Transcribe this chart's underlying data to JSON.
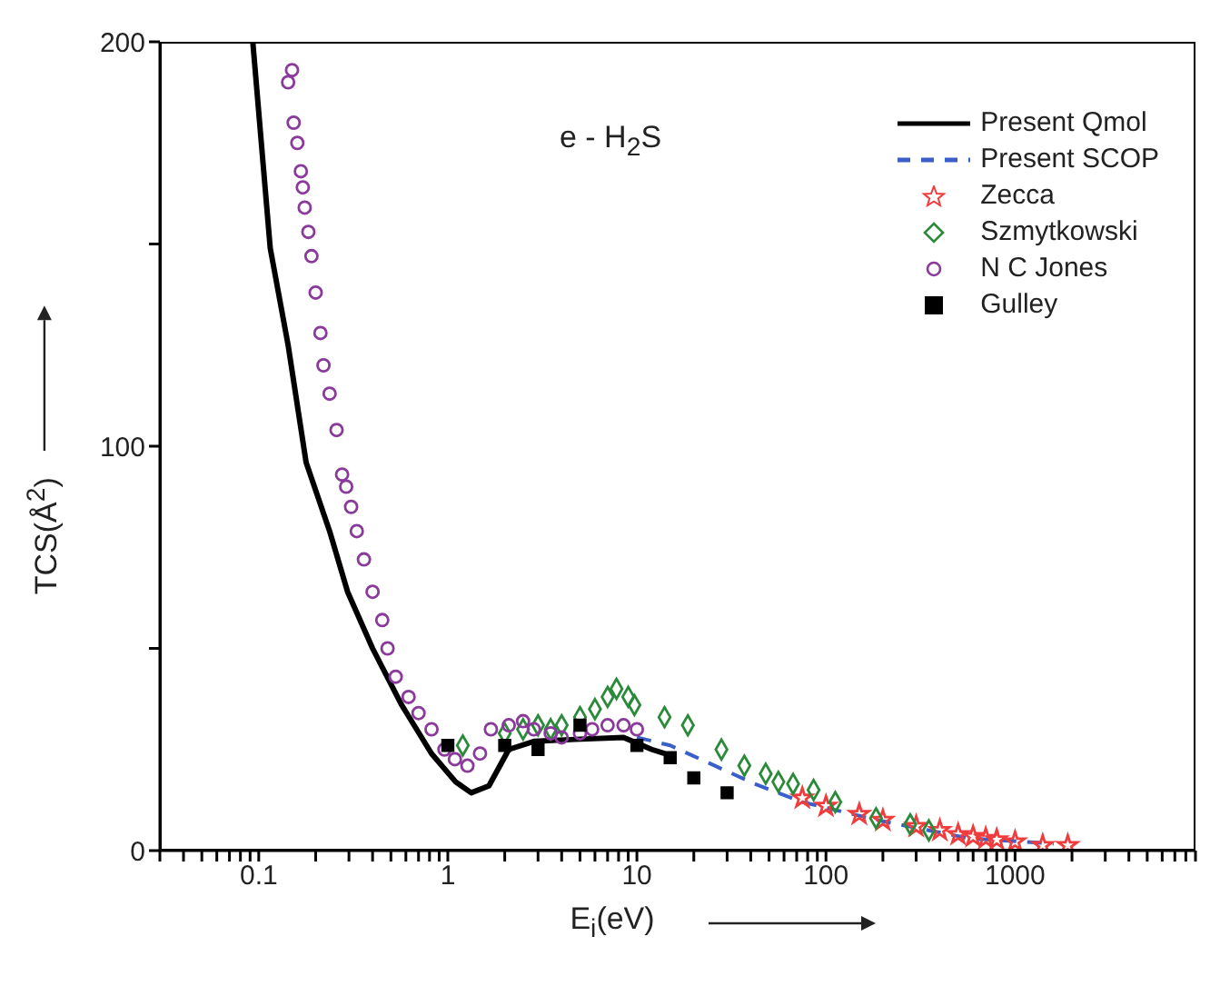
{
  "chart_data": {
    "type": "scatter",
    "xlabel": "E$_{i}$(eV)",
    "ylabel": "TCS(Å$^{2}$)",
    "annotations": [
      "e - H$_{2}$S"
    ],
    "log": "x",
    "grid": false,
    "legend": "top right",
    "xlim": [
      0.03,
      9000
    ],
    "ylim": [
      0,
      200
    ],
    "xticks": [
      {
        "value": 0.03,
        "label": null
      },
      {
        "value": 0.04,
        "label": null
      },
      {
        "value": 0.05,
        "label": null
      },
      {
        "value": 0.06,
        "label": null
      },
      {
        "value": 0.07,
        "label": null
      },
      {
        "value": 0.08,
        "label": null
      },
      {
        "value": 0.09,
        "label": null
      },
      0.1,
      {
        "value": 0.2,
        "label": null
      },
      {
        "value": 0.3,
        "label": null
      },
      {
        "value": 0.4,
        "label": null
      },
      {
        "value": 0.5,
        "label": null
      },
      {
        "value": 0.6,
        "label": null
      },
      {
        "value": 0.7,
        "label": null
      },
      {
        "value": 0.8,
        "label": null
      },
      {
        "value": 0.9,
        "label": null
      },
      1,
      {
        "value": 2,
        "label": null
      },
      {
        "value": 3,
        "label": null
      },
      {
        "value": 4,
        "label": null
      },
      {
        "value": 5,
        "label": null
      },
      {
        "value": 6,
        "label": null
      },
      {
        "value": 7,
        "label": null
      },
      {
        "value": 8,
        "label": null
      },
      {
        "value": 9,
        "label": null
      },
      10,
      {
        "value": 20,
        "label": null
      },
      {
        "value": 30,
        "label": null
      },
      {
        "value": 40,
        "label": null
      },
      {
        "value": 50,
        "label": null
      },
      {
        "value": 60,
        "label": null
      },
      {
        "value": 70,
        "label": null
      },
      {
        "value": 80,
        "label": null
      },
      {
        "value": 90,
        "label": null
      },
      100,
      {
        "value": 200,
        "label": null
      },
      {
        "value": 300,
        "label": null
      },
      {
        "value": 400,
        "label": null
      },
      {
        "value": 500,
        "label": null
      },
      {
        "value": 600,
        "label": null
      },
      {
        "value": 700,
        "label": null
      },
      {
        "value": 800,
        "label": null
      },
      {
        "value": 900,
        "label": null
      },
      1000,
      {
        "value": 2000,
        "label": null
      },
      {
        "value": 3000,
        "label": null
      },
      {
        "value": 4000,
        "label": null
      },
      {
        "value": 5000,
        "label": null
      },
      {
        "value": 6000,
        "label": null
      },
      {
        "value": 7000,
        "label": null
      },
      {
        "value": 8000,
        "label": null
      },
      {
        "value": 9000,
        "label": null
      }
    ],
    "yticks": [
      0,
      {
        "value": 50,
        "label": null
      },
      100,
      {
        "value": 150,
        "label": null
      },
      200
    ],
    "series": [
      {
        "name": "Present Qmol",
        "type": "line",
        "color": "#000000",
        "line_style": "solid",
        "marker": "none",
        "x": [
          0.093,
          0.115,
          0.143,
          0.178,
          0.237,
          0.295,
          0.4,
          0.57,
          0.82,
          1.1,
          1.33,
          1.65,
          2.1,
          2.85,
          4.7,
          8.5,
          12,
          14
        ],
        "values": [
          200,
          149,
          125,
          96,
          79,
          64,
          50,
          36,
          24,
          17,
          14.3,
          16,
          25,
          27,
          27.5,
          28,
          25,
          24
        ]
      },
      {
        "name": "Present SCOP",
        "type": "line",
        "color": "#3a5fc8",
        "line_style": "dashed",
        "marker": "none",
        "x": [
          10,
          15,
          42,
          75,
          193,
          575,
          1600
        ],
        "values": [
          28,
          26,
          16.5,
          12,
          7.4,
          3,
          1.7
        ]
      },
      {
        "name": "Zecca",
        "color": "#f03c3c",
        "marker": "star",
        "x": [
          75,
          100,
          150,
          200,
          300,
          400,
          500,
          600,
          700,
          800,
          1000,
          1400,
          1900
        ],
        "values": [
          13,
          11,
          9,
          7.5,
          6,
          5,
          4,
          3.5,
          3,
          2.7,
          2.2,
          1.3,
          1.3
        ]
      },
      {
        "name": "Szmytkowski",
        "color": "#2a8a3a",
        "marker": "diamond",
        "x": [
          1.2,
          2,
          2.5,
          3,
          3.5,
          4,
          5,
          6,
          7,
          7.8,
          9,
          9.7,
          14,
          18.6,
          28,
          37,
          48,
          56,
          67,
          86,
          112,
          184,
          279,
          350
        ],
        "values": [
          26,
          29,
          30,
          31,
          30,
          31,
          33,
          35,
          38,
          40,
          38,
          36,
          33,
          31,
          25,
          21,
          19,
          17,
          16.5,
          15,
          12,
          8,
          6.5,
          5
        ]
      },
      {
        "name": "N C Jones",
        "color": "#8a3a9a",
        "marker": "circle",
        "x": [
          0.15,
          0.143,
          0.153,
          0.16,
          0.167,
          0.171,
          0.175,
          0.183,
          0.19,
          0.2,
          0.212,
          0.22,
          0.237,
          0.258,
          0.276,
          0.29,
          0.308,
          0.33,
          0.36,
          0.4,
          0.45,
          0.48,
          0.53,
          0.62,
          0.7,
          0.82,
          0.96,
          1.09,
          1.27,
          1.48,
          1.69,
          2.1,
          2.5,
          2.85,
          3.5,
          4,
          5,
          5.8,
          7,
          8.5,
          10
        ],
        "values": [
          193,
          190,
          180,
          175,
          168,
          164,
          159,
          153,
          147,
          138,
          128,
          120,
          113,
          104,
          93,
          90,
          85,
          79,
          72,
          64,
          57,
          50,
          43,
          38,
          34,
          30,
          25,
          22.6,
          21,
          24,
          30,
          31,
          32,
          30,
          29,
          28,
          29,
          30,
          31,
          31,
          30
        ]
      },
      {
        "name": "Gulley",
        "color": "#000000",
        "marker": "square",
        "x": [
          1,
          2,
          3,
          5,
          10,
          15,
          20,
          30
        ],
        "values": [
          26,
          26,
          25,
          31,
          26,
          23,
          18,
          14.3
        ]
      }
    ]
  }
}
